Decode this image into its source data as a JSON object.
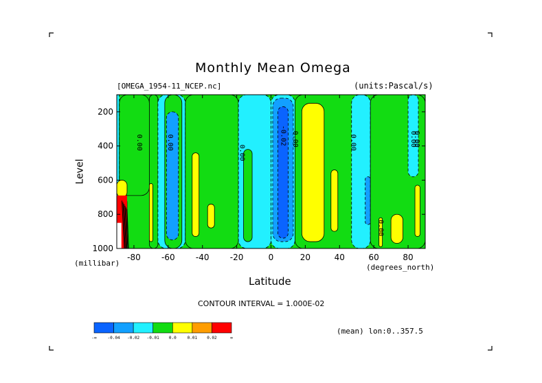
{
  "chart_data": {
    "type": "contour",
    "title": "Monthly Mean Omega",
    "file_label": "[OMEGA_1954-11_NCEP.nc]",
    "units_label": "(units:Pascal/s)",
    "xlabel": "Latitude",
    "xunits": "(degrees_north)",
    "ylabel": "Level",
    "yunits": "(millibar)",
    "xlim": [
      -90,
      90
    ],
    "ylim": [
      1000,
      100
    ],
    "x_ticks": [
      "-80",
      "-60",
      "-40",
      "-20",
      "0",
      "20",
      "40",
      "60",
      "80"
    ],
    "x_tick_values": [
      -80,
      -60,
      -40,
      -20,
      0,
      20,
      40,
      60,
      80
    ],
    "y_ticks": [
      "200",
      "400",
      "600",
      "800",
      "1000"
    ],
    "y_tick_values": [
      200,
      400,
      600,
      800,
      1000
    ],
    "contour_interval_text": "CONTOUR INTERVAL = 1.000E-02",
    "mean_text": "(mean) lon:0..357.5",
    "contour_labels": [
      {
        "text": "0.00",
        "lat": -78,
        "level": 380
      },
      {
        "text": "0.00",
        "lat": -60,
        "level": 380
      },
      {
        "text": "0.00",
        "lat": -18,
        "level": 440
      },
      {
        "text": "-0.02",
        "lat": 6,
        "level": 340
      },
      {
        "text": "0.00",
        "lat": 13,
        "level": 360
      },
      {
        "text": "0.00",
        "lat": 47,
        "level": 380
      },
      {
        "text": "0.00",
        "lat": 82,
        "level": 360
      },
      {
        "text": "0.00",
        "lat": 84,
        "level": 360
      },
      {
        "text": "0.00",
        "lat": 63,
        "level": 880
      }
    ],
    "regions": [
      {
        "class": "-0.01",
        "lat": [
          -90,
          -88.5
        ],
        "level": [
          100,
          1000
        ]
      },
      {
        "class": "0.0",
        "lat": [
          -88.5,
          -71
        ],
        "level": [
          100,
          690
        ]
      },
      {
        "class": "0.01",
        "lat": [
          -90,
          -84
        ],
        "level": [
          600,
          700
        ]
      },
      {
        "class": "0.02",
        "lat": [
          -90,
          -84
        ],
        "level": [
          700,
          1000
        ]
      },
      {
        "class": "0.0",
        "lat": [
          -71,
          -66
        ],
        "level": [
          100,
          1000
        ]
      },
      {
        "class": "0.01",
        "lat": [
          -71,
          -69
        ],
        "level": [
          620,
          960
        ]
      },
      {
        "class": "-0.01",
        "lat": [
          -66,
          -50
        ],
        "level": [
          100,
          1000
        ]
      },
      {
        "class": "0.0",
        "lat": [
          -62,
          -52
        ],
        "level": [
          100,
          1000
        ]
      },
      {
        "class": "-0.02",
        "lat": [
          -61,
          -54
        ],
        "level": [
          200,
          950
        ]
      },
      {
        "class": "0.0",
        "lat": [
          -50,
          -19
        ],
        "level": [
          100,
          1000
        ]
      },
      {
        "class": "0.01",
        "lat": [
          -46,
          -42
        ],
        "level": [
          440,
          930
        ]
      },
      {
        "class": "0.01",
        "lat": [
          -37,
          -33
        ],
        "level": [
          740,
          880
        ]
      },
      {
        "class": "-0.01",
        "lat": [
          -19,
          0
        ],
        "level": [
          100,
          1000
        ]
      },
      {
        "class": "0.0",
        "lat": [
          -16,
          -11
        ],
        "level": [
          420,
          960
        ]
      },
      {
        "class": "-0.01",
        "lat": [
          0,
          14
        ],
        "level": [
          100,
          1000
        ]
      },
      {
        "class": "-0.02",
        "lat": [
          1,
          13
        ],
        "level": [
          120,
          960
        ]
      },
      {
        "class": "-0.03",
        "lat": [
          4,
          10
        ],
        "level": [
          170,
          940
        ]
      },
      {
        "class": "0.0",
        "lat": [
          14,
          57
        ],
        "level": [
          100,
          1000
        ]
      },
      {
        "class": "0.01",
        "lat": [
          18,
          31
        ],
        "level": [
          150,
          960
        ]
      },
      {
        "class": "0.01",
        "lat": [
          35,
          39
        ],
        "level": [
          540,
          900
        ]
      },
      {
        "class": "-0.01",
        "lat": [
          47,
          58
        ],
        "level": [
          100,
          1000
        ]
      },
      {
        "class": "-0.02",
        "lat": [
          55,
          58
        ],
        "level": [
          580,
          860
        ]
      },
      {
        "class": "0.0",
        "lat": [
          58,
          90
        ],
        "level": [
          100,
          1000
        ]
      },
      {
        "class": "0.01",
        "lat": [
          63,
          65
        ],
        "level": [
          820,
          990
        ]
      },
      {
        "class": "0.01",
        "lat": [
          70,
          77
        ],
        "level": [
          800,
          970
        ]
      },
      {
        "class": "0.01",
        "lat": [
          84,
          87
        ],
        "level": [
          630,
          930
        ]
      },
      {
        "class": "-0.01",
        "lat": [
          80,
          86
        ],
        "level": [
          100,
          580
        ]
      }
    ],
    "legend": {
      "colors": [
        "#0a64ff",
        "#12a0ff",
        "#22f0ff",
        "#12dc12",
        "#ffff00",
        "#ff9d00",
        "#ff0000"
      ],
      "labels": [
        "-0.04",
        "-0.02",
        "-0.01",
        "0.0",
        "0.01",
        "0.02"
      ],
      "end_labels": [
        "-∞",
        "∞"
      ]
    },
    "class_colors": {
      "-0.03": "#0a64ff",
      "-0.02": "#12a0ff",
      "-0.01": "#22f0ff",
      "0.0": "#12dc12",
      "0.01": "#ffff00",
      "0.02": "#ff9d00"
    }
  }
}
